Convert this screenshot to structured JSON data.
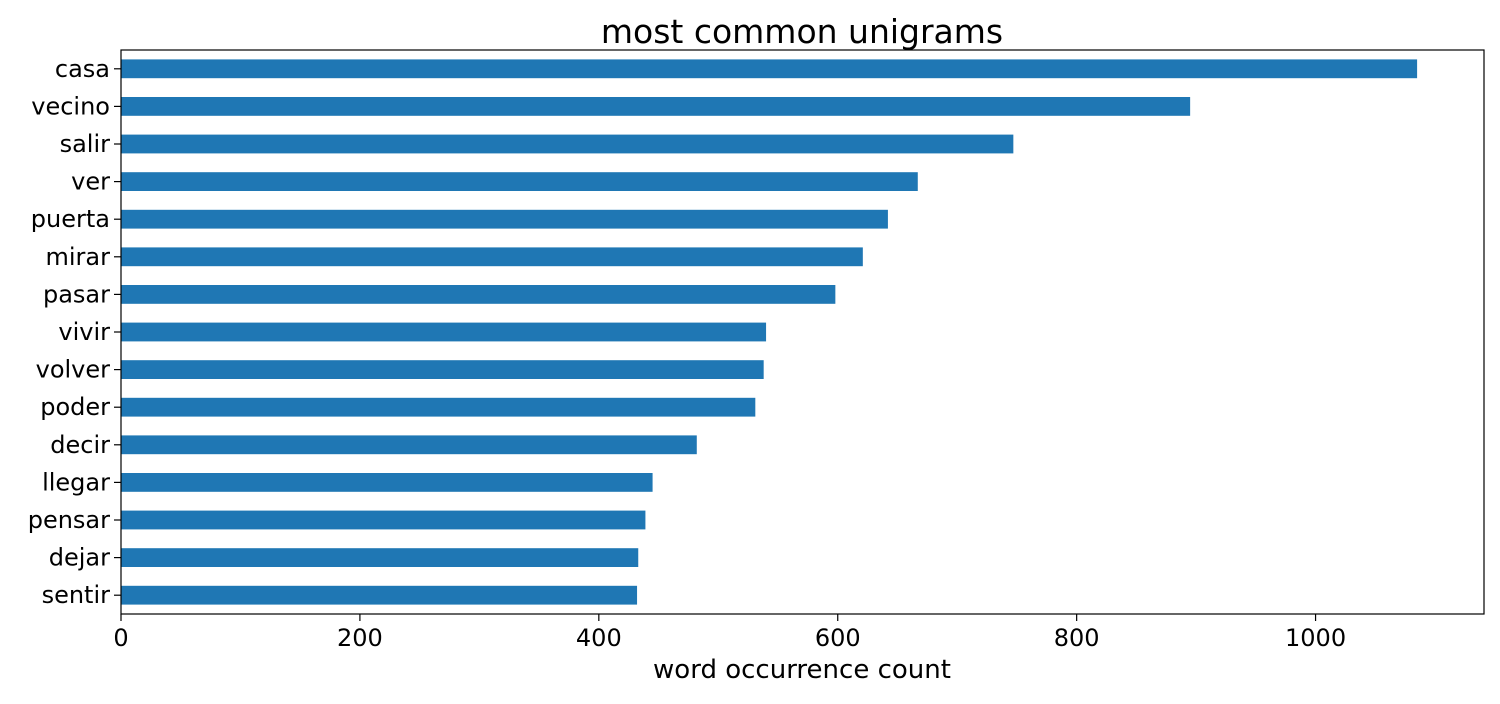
{
  "chart_data": {
    "type": "bar",
    "orientation": "horizontal",
    "title": "most common unigrams",
    "xlabel": "word occurrence count",
    "ylabel": "",
    "categories": [
      "casa",
      "vecino",
      "salir",
      "ver",
      "puerta",
      "mirar",
      "pasar",
      "vivir",
      "volver",
      "poder",
      "decir",
      "llegar",
      "pensar",
      "dejar",
      "sentir"
    ],
    "values": [
      1085,
      895,
      747,
      667,
      642,
      621,
      598,
      540,
      538,
      531,
      482,
      445,
      439,
      433,
      432
    ],
    "xlim": [
      0,
      1141
    ],
    "xticks": [
      0,
      200,
      400,
      600,
      800,
      1000
    ],
    "grid": false,
    "legend": "none",
    "bar_color": "#1f77b4"
  }
}
